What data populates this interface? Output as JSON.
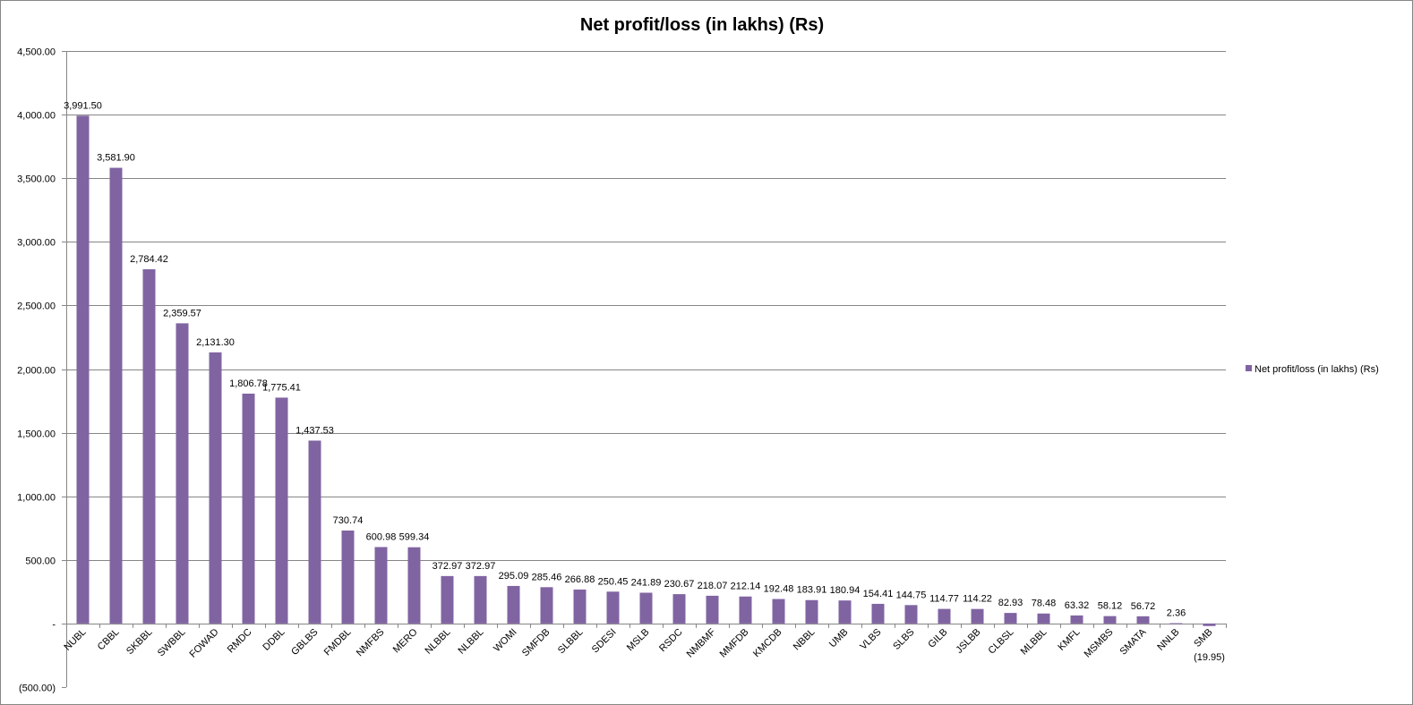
{
  "chart_data": {
    "type": "bar",
    "title": "Net profit/loss (in lakhs) (Rs)",
    "xlabel": "",
    "ylabel": "",
    "ylim": [
      -500,
      4500
    ],
    "y_ticks": [
      -500,
      0,
      500,
      1000,
      1500,
      2000,
      2500,
      3000,
      3500,
      4000,
      4500
    ],
    "y_tick_labels": [
      "(500.00)",
      "-",
      "500.00",
      "1,000.00",
      "1,500.00",
      "2,000.00",
      "2,500.00",
      "3,000.00",
      "3,500.00",
      "4,000.00",
      "4,500.00"
    ],
    "grid": true,
    "legend_position": "right",
    "bar_color": "#8064A2",
    "categories": [
      "NUBL",
      "CBBL",
      "SKBBL",
      "SWBBL",
      "FOWAD",
      "RMDC",
      "DDBL",
      "GBLBS",
      "FMDBL",
      "NMFBS",
      "MERO",
      "NLBBL",
      "NLBBL",
      "WOMI",
      "SMFDB",
      "SLBBL",
      "SDESI",
      "MSLB",
      "RSDC",
      "NMBMF",
      "MMFDB",
      "KMCDB",
      "NBBL",
      "UMB",
      "VLBS",
      "SLBS",
      "GILB",
      "JSLBB",
      "CLBSL",
      "MLBBL",
      "KMFL",
      "MSMBS",
      "SMATA",
      "NNLB",
      "SMB"
    ],
    "series": [
      {
        "name": "Net profit/loss (in lakhs) (Rs)",
        "values": [
          3991.5,
          3581.9,
          2784.42,
          2359.57,
          2131.3,
          1806.78,
          1775.41,
          1437.53,
          730.74,
          600.98,
          599.34,
          372.97,
          372.97,
          295.09,
          285.46,
          266.88,
          250.45,
          241.89,
          230.67,
          218.07,
          212.14,
          192.48,
          183.91,
          180.94,
          154.41,
          144.75,
          114.77,
          114.22,
          82.93,
          78.48,
          63.32,
          58.12,
          56.72,
          2.36,
          -19.95
        ],
        "labels": [
          "3,991.50",
          "3,581.90",
          "2,784.42",
          "2,359.57",
          "2,131.30",
          "1,806.78",
          "1,775.41",
          "1,437.53",
          "730.74",
          "600.98",
          "599.34",
          "372.97",
          "372.97",
          "295.09",
          "285.46",
          "266.88",
          "250.45",
          "241.89",
          "230.67",
          "218.07",
          "212.14",
          "192.48",
          "183.91",
          "180.94",
          "154.41",
          "144.75",
          "114.77",
          "114.22",
          "82.93",
          "78.48",
          "63.32",
          "58.12",
          "56.72",
          "2.36",
          "(19.95)"
        ]
      }
    ]
  }
}
